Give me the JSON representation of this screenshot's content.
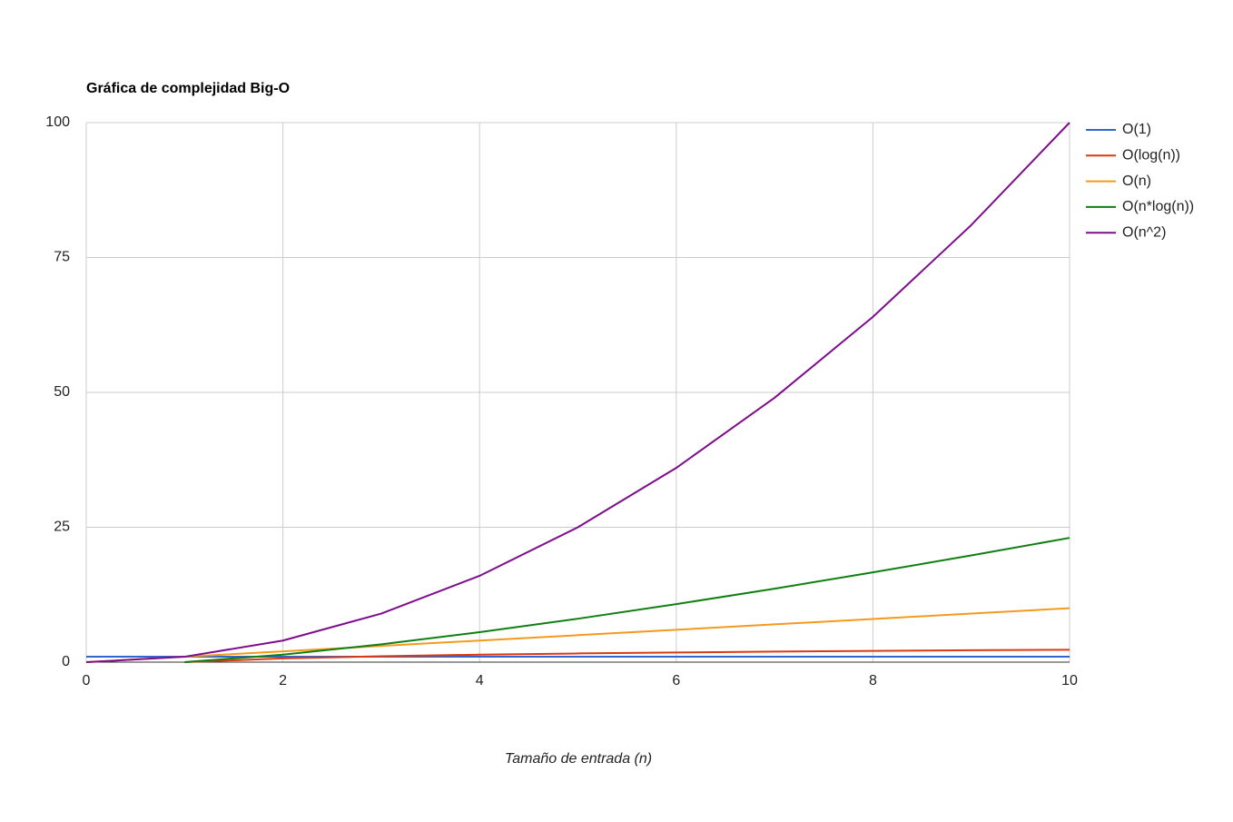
{
  "chart_data": {
    "type": "line",
    "title": "Gráfica de complejidad Big-O",
    "x_label": "Tamaño de entrada (n)",
    "x": [
      0,
      1,
      2,
      3,
      4,
      5,
      6,
      7,
      8,
      9,
      10
    ],
    "series": [
      {
        "name": "O(1)",
        "color": "#3366cc",
        "values": [
          1,
          1,
          1,
          1,
          1,
          1,
          1,
          1,
          1,
          1,
          1
        ]
      },
      {
        "name": "O(log(n))",
        "color": "#dc3912",
        "values": [
          null,
          0,
          0.69,
          1.1,
          1.39,
          1.61,
          1.79,
          1.95,
          2.08,
          2.2,
          2.3
        ]
      },
      {
        "name": "O(n)",
        "color": "#f39a1e",
        "values": [
          0,
          1,
          2,
          3,
          4,
          5,
          6,
          7,
          8,
          9,
          10
        ]
      },
      {
        "name": "O(n*log(n))",
        "color": "#0f7f12",
        "values": [
          null,
          0,
          1.39,
          3.3,
          5.55,
          8.05,
          10.75,
          13.62,
          16.64,
          19.78,
          23.03
        ]
      },
      {
        "name": "O(n^2)",
        "color": "#7d0d8c",
        "values": [
          0,
          1,
          4,
          9,
          16,
          25,
          36,
          49,
          64,
          81,
          100
        ]
      }
    ],
    "xlim": [
      0,
      10
    ],
    "xticks": [
      0,
      2,
      4,
      6,
      8,
      10
    ],
    "ylim": [
      0,
      100
    ],
    "yticks": [
      0,
      25,
      50,
      75,
      100
    ],
    "grid": true,
    "legend": "right"
  }
}
